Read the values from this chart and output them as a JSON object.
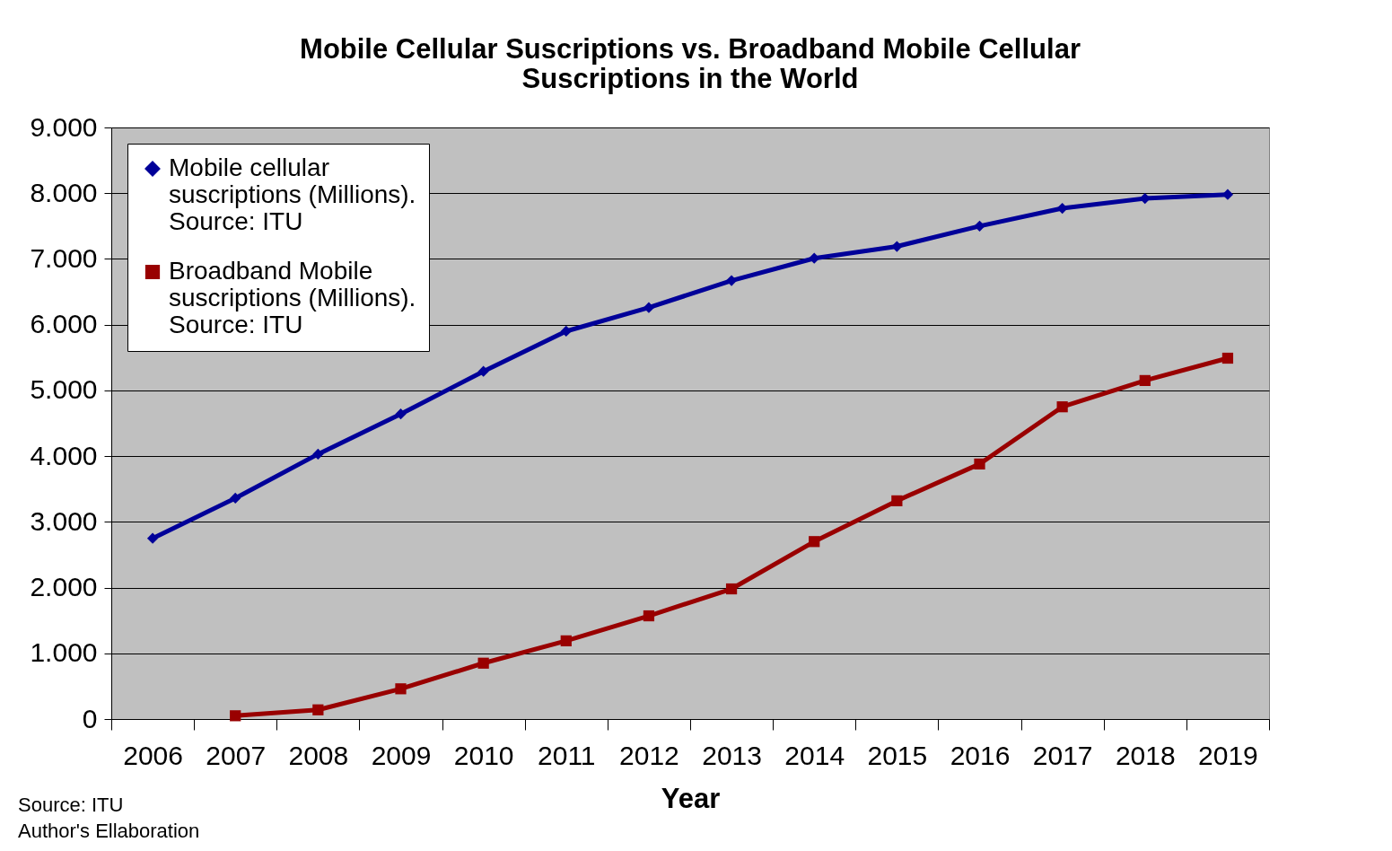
{
  "chart_data": {
    "type": "line",
    "title": [
      "Mobile Cellular Suscriptions vs. Broadband Mobile Cellular",
      "Suscriptions in the World"
    ],
    "xlabel": "Year",
    "categories": [
      "2006",
      "2007",
      "2008",
      "2009",
      "2010",
      "2011",
      "2012",
      "2013",
      "2014",
      "2015",
      "2016",
      "2017",
      "2018",
      "2019"
    ],
    "series": [
      {
        "name": "Mobile cellular suscriptions (Millions). Source: ITU",
        "color": "#000099",
        "marker": "diamond",
        "values": [
          2750,
          3360,
          4030,
          4640,
          5290,
          5900,
          6260,
          6670,
          7010,
          7190,
          7500,
          7770,
          7920,
          7980
        ]
      },
      {
        "name": "Broadband Mobile suscriptions (Millions). Source: ITU",
        "color": "#990000",
        "marker": "square",
        "values": [
          null,
          50,
          140,
          460,
          850,
          1190,
          1570,
          1980,
          2700,
          3320,
          3880,
          4750,
          5150,
          5490
        ]
      }
    ],
    "ylim": [
      0,
      9000
    ],
    "yticks": [
      {
        "value": 0,
        "label": "0"
      },
      {
        "value": 1000,
        "label": "1.000"
      },
      {
        "value": 2000,
        "label": "2.000"
      },
      {
        "value": 3000,
        "label": "3.000"
      },
      {
        "value": 4000,
        "label": "4.000"
      },
      {
        "value": 5000,
        "label": "5.000"
      },
      {
        "value": 6000,
        "label": "6.000"
      },
      {
        "value": 7000,
        "label": "7.000"
      },
      {
        "value": 8000,
        "label": "8.000"
      },
      {
        "value": 9000,
        "label": "9.000"
      }
    ],
    "grid": "y",
    "legend": "top left",
    "line_style": "solid",
    "annotations": [
      "Source: ITU",
      "Author's Ellaboration"
    ]
  }
}
